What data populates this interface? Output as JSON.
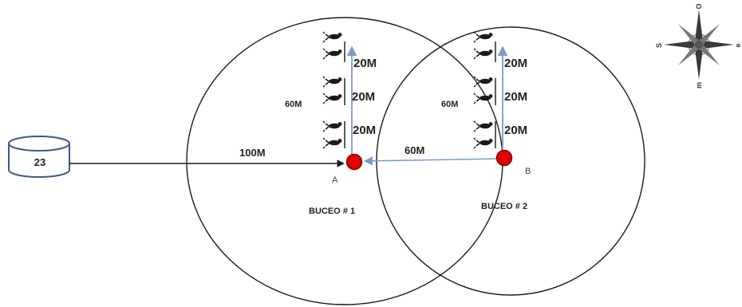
{
  "depot": {
    "label": "23"
  },
  "distances": {
    "depot_to_a": "100M",
    "a_to_b": "60M"
  },
  "site_a": {
    "point_label": "A",
    "dive_label": "BUCEO # 1",
    "total_depth": "60M",
    "segments": [
      "20M",
      "20M",
      "20M"
    ]
  },
  "site_b": {
    "point_label": "B",
    "dive_label": "BUCEO # 2",
    "total_depth": "60M",
    "segments": [
      "20M",
      "20M",
      "20M"
    ]
  },
  "compass": {
    "north": "O",
    "south": "m",
    "east": "e",
    "west": "S"
  },
  "colors": {
    "line": "#1a1a1a",
    "arrow": "#7a9cc7",
    "marker_fill": "#e00000",
    "marker_stroke": "#8a0000",
    "diver": "#1a1a1a"
  }
}
